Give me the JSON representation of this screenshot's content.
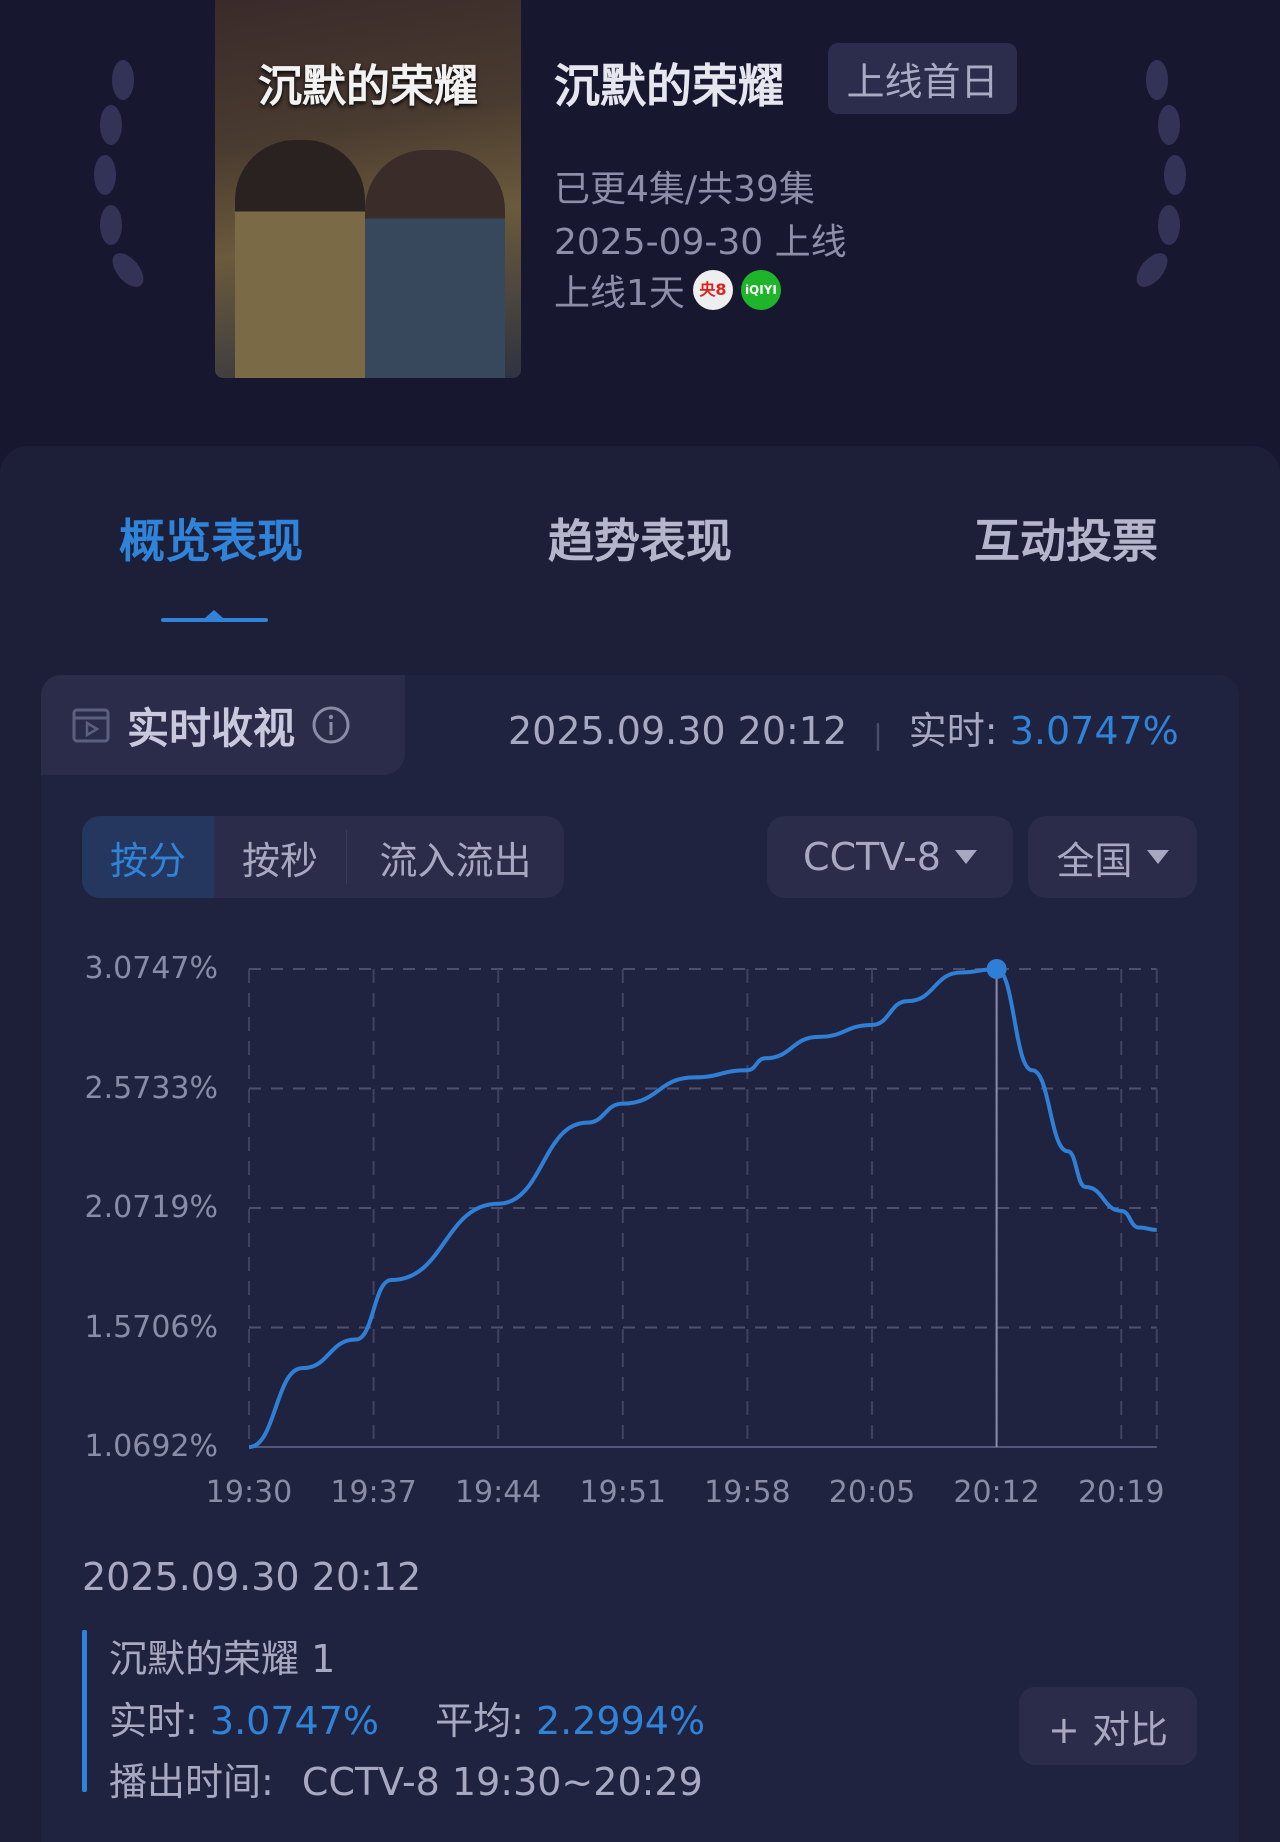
{
  "show": {
    "title": "沉默的荣耀",
    "badge": "上线首日",
    "poster_title": "沉默的荣耀",
    "episodes": "已更4集/共39集",
    "release": "2025-09-30 上线",
    "days": "上线1天",
    "platform_logos": [
      {
        "name": "cctv8-logo",
        "text": "央8"
      },
      {
        "name": "iqiyi-logo",
        "text": "iQIYI"
      }
    ]
  },
  "tabs": [
    {
      "label": "概览表现",
      "active": true
    },
    {
      "label": "趋势表现"
    },
    {
      "label": "互动投票"
    }
  ],
  "panel": {
    "title": "实时收视",
    "timestamp": "2025.09.30 20:12",
    "realtime_label": "实时:",
    "realtime_value": "3.0747%"
  },
  "segments": [
    {
      "label": "按分",
      "active": true
    },
    {
      "label": "按秒"
    },
    {
      "label": "流入流出"
    }
  ],
  "filters": {
    "channel": "CCTV-8",
    "region": "全国"
  },
  "chart_data": {
    "type": "line",
    "yticks": [
      "3.0747%",
      "2.5733%",
      "2.0719%",
      "1.5706%",
      "1.0692%"
    ],
    "ylim": [
      1.0692,
      3.0747
    ],
    "xticks": [
      "19:30",
      "19:37",
      "19:44",
      "19:51",
      "19:58",
      "20:05",
      "20:12",
      "20:19"
    ],
    "grid": true,
    "highlight": {
      "x": "20:12",
      "y": 3.0747
    },
    "points": [
      [
        "19:30",
        1.069
      ],
      [
        "19:33",
        1.4
      ],
      [
        "19:36",
        1.52
      ],
      [
        "19:38",
        1.77
      ],
      [
        "19:44",
        2.09
      ],
      [
        "19:49",
        2.43
      ],
      [
        "19:51",
        2.51
      ],
      [
        "19:55",
        2.62
      ],
      [
        "19:58",
        2.65
      ],
      [
        "19:59",
        2.7
      ],
      [
        "20:02",
        2.79
      ],
      [
        "20:05",
        2.84
      ],
      [
        "20:07",
        2.94
      ],
      [
        "20:10",
        3.06
      ],
      [
        "20:12",
        3.0747
      ],
      [
        "20:14",
        2.65
      ],
      [
        "20:16",
        2.31
      ],
      [
        "20:17",
        2.16
      ],
      [
        "20:19",
        2.06
      ],
      [
        "20:20",
        1.99
      ],
      [
        "20:21",
        1.98
      ]
    ],
    "color": "#2f7fd6"
  },
  "detail": {
    "timestamp": "2025.09.30 20:12",
    "name": "沉默的荣耀 1",
    "realtime_label": "实时:",
    "realtime_value": "3.0747%",
    "avg_label": "平均:",
    "avg_value": "2.2994%",
    "airtime_label": "播出时间:",
    "airtime_value": "CCTV-8 19:30~20:29",
    "compare_button": "+ 对比"
  }
}
